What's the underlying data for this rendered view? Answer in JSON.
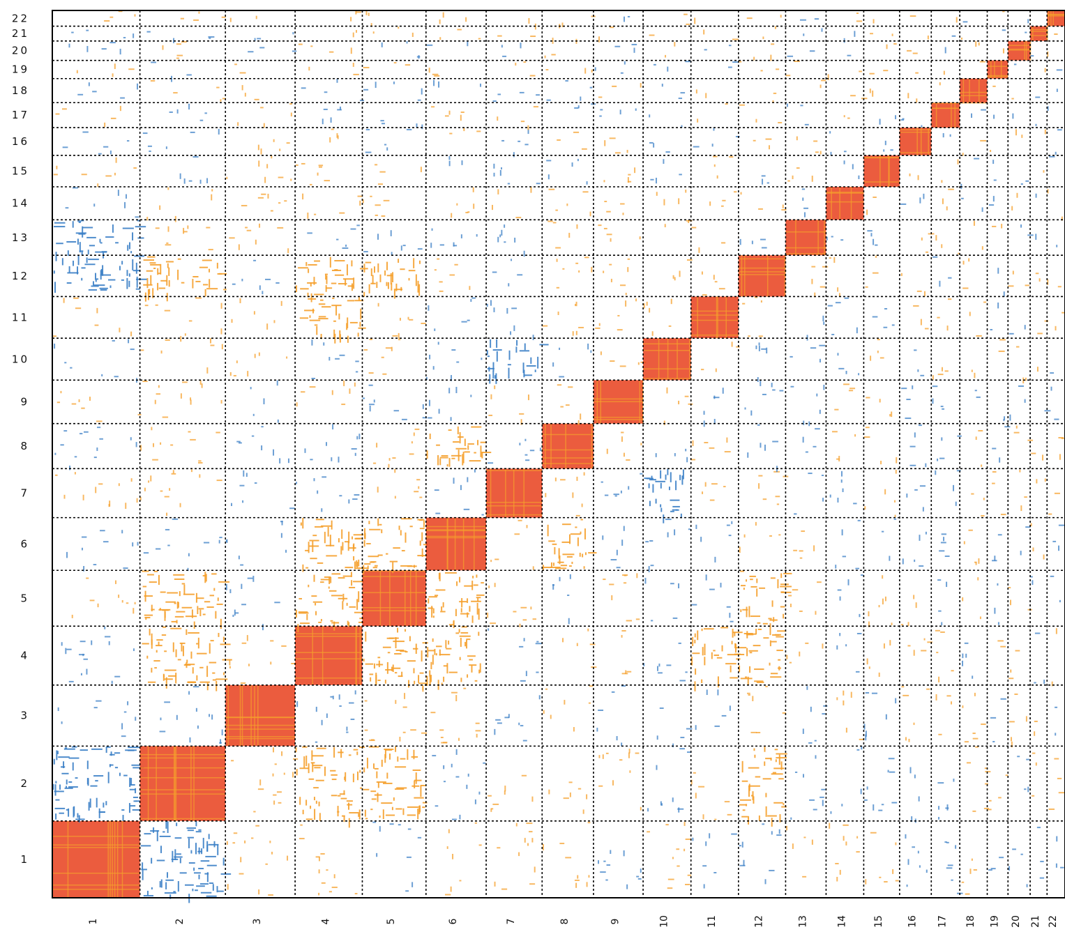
{
  "chart_data": {
    "type": "heatmap",
    "title": "",
    "xlabel": "",
    "ylabel": "",
    "categories": [
      "1",
      "2",
      "3",
      "4",
      "5",
      "6",
      "7",
      "8",
      "9",
      "10",
      "11",
      "12",
      "13",
      "14",
      "15",
      "16",
      "17",
      "18",
      "19",
      "20",
      "21",
      "22"
    ],
    "x_tick_labels": [
      "1",
      "2",
      "3",
      "4",
      "5",
      "6",
      "7",
      "8",
      "9",
      "10",
      "11",
      "12",
      "13",
      "14",
      "15",
      "16",
      "17",
      "18",
      "19",
      "20",
      "21",
      "22"
    ],
    "y_tick_labels": [
      "1",
      "2",
      "3",
      "4",
      "5",
      "6",
      "7",
      "8",
      "9",
      "10",
      "11",
      "12",
      "13",
      "14",
      "15",
      "16",
      "17",
      "18",
      "19",
      "20",
      "21",
      "22"
    ],
    "relative_sizes": [
      249,
      243,
      198,
      191,
      181,
      171,
      159,
      146,
      141,
      136,
      135,
      134,
      115,
      107,
      102,
      90,
      81,
      78,
      59,
      63,
      48,
      51
    ],
    "grid": true,
    "grid_style": "dashed",
    "colors": {
      "diagonal_block": "#e8401c",
      "positive": "#f5a02c",
      "negative": "#3b7fc6",
      "grid": "#000000",
      "axis": "#000000",
      "background": "#ffffff"
    },
    "strong_blocks": [
      {
        "row": "7",
        "col": "10",
        "sign": "negative"
      },
      {
        "row": "10",
        "col": "7",
        "sign": "negative"
      },
      {
        "row": "2",
        "col": "1",
        "sign": "negative"
      },
      {
        "row": "1",
        "col": "2",
        "sign": "negative"
      },
      {
        "row": "2",
        "col": "4",
        "sign": "positive"
      },
      {
        "row": "4",
        "col": "2",
        "sign": "positive"
      },
      {
        "row": "2",
        "col": "5",
        "sign": "positive"
      },
      {
        "row": "5",
        "col": "2",
        "sign": "positive"
      },
      {
        "row": "4",
        "col": "5",
        "sign": "positive"
      },
      {
        "row": "5",
        "col": "4",
        "sign": "positive"
      },
      {
        "row": "4",
        "col": "6",
        "sign": "positive"
      },
      {
        "row": "6",
        "col": "4",
        "sign": "positive"
      },
      {
        "row": "5",
        "col": "6",
        "sign": "positive"
      },
      {
        "row": "6",
        "col": "5",
        "sign": "positive"
      },
      {
        "row": "12",
        "col": "2",
        "sign": "positive"
      },
      {
        "row": "2",
        "col": "12",
        "sign": "positive"
      },
      {
        "row": "12",
        "col": "4",
        "sign": "positive"
      },
      {
        "row": "4",
        "col": "12",
        "sign": "positive"
      },
      {
        "row": "11",
        "col": "4",
        "sign": "positive"
      },
      {
        "row": "4",
        "col": "11",
        "sign": "positive"
      },
      {
        "row": "12",
        "col": "5",
        "sign": "positive"
      },
      {
        "row": "5",
        "col": "12",
        "sign": "positive"
      },
      {
        "row": "6",
        "col": "8",
        "sign": "positive"
      },
      {
        "row": "8",
        "col": "6",
        "sign": "positive"
      },
      {
        "row": "13",
        "col": "1",
        "sign": "negative"
      },
      {
        "row": "12",
        "col": "1",
        "sign": "negative"
      }
    ]
  }
}
